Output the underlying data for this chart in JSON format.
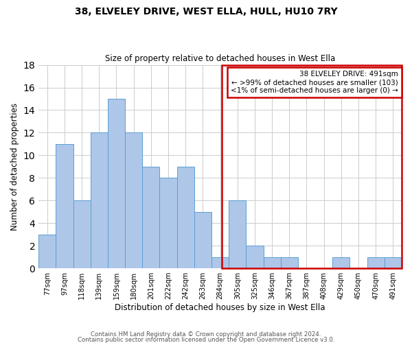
{
  "title": "38, ELVELEY DRIVE, WEST ELLA, HULL, HU10 7RY",
  "subtitle": "Size of property relative to detached houses in West Ella",
  "xlabel": "Distribution of detached houses by size in West Ella",
  "ylabel": "Number of detached properties",
  "bar_labels": [
    "77sqm",
    "97sqm",
    "118sqm",
    "139sqm",
    "159sqm",
    "180sqm",
    "201sqm",
    "222sqm",
    "242sqm",
    "263sqm",
    "284sqm",
    "305sqm",
    "325sqm",
    "346sqm",
    "367sqm",
    "387sqm",
    "408sqm",
    "429sqm",
    "450sqm",
    "470sqm",
    "491sqm"
  ],
  "bar_values": [
    3,
    11,
    6,
    12,
    15,
    12,
    9,
    8,
    9,
    5,
    1,
    6,
    2,
    1,
    1,
    0,
    0,
    1,
    0,
    1,
    1
  ],
  "bar_color": "#AEC6E8",
  "bar_edge_color": "#5A9FD4",
  "highlight_line_color": "#CC0000",
  "highlight_index": 20,
  "annotation_line1": "38 ELVELEY DRIVE: 491sqm",
  "annotation_line2": "← >99% of detached houses are smaller (103)",
  "annotation_line3": "<1% of semi-detached houses are larger (0) →",
  "annotation_box_edge": "#CC0000",
  "annotation_box_face": "#FFFFFF",
  "ylim": [
    0,
    18
  ],
  "yticks": [
    0,
    2,
    4,
    6,
    8,
    10,
    12,
    14,
    16,
    18
  ],
  "footer_line1": "Contains HM Land Registry data © Crown copyright and database right 2024.",
  "footer_line2": "Contains public sector information licensed under the Open Government Licence v3.0.",
  "background_color": "#FFFFFF",
  "grid_color": "#CCCCCC",
  "fig_width": 6.0,
  "fig_height": 5.0,
  "fig_dpi": 100
}
